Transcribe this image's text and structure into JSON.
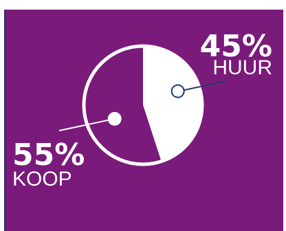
{
  "chart_data": {
    "type": "pie",
    "slices": [
      {
        "label": "HUUR",
        "percent_label": "45%",
        "value": 45
      },
      {
        "label": "KOOP",
        "percent_label": "55%",
        "value": 55
      }
    ]
  },
  "colors": {
    "background": "#7a1a7a",
    "slice_huur": "#ffffff",
    "slice_koop": "#7a1a7a",
    "ring": "#ffffff",
    "marker_huur": "#1f3a6e",
    "marker_koop": "#ffffff",
    "border": "#2c2f6e"
  }
}
